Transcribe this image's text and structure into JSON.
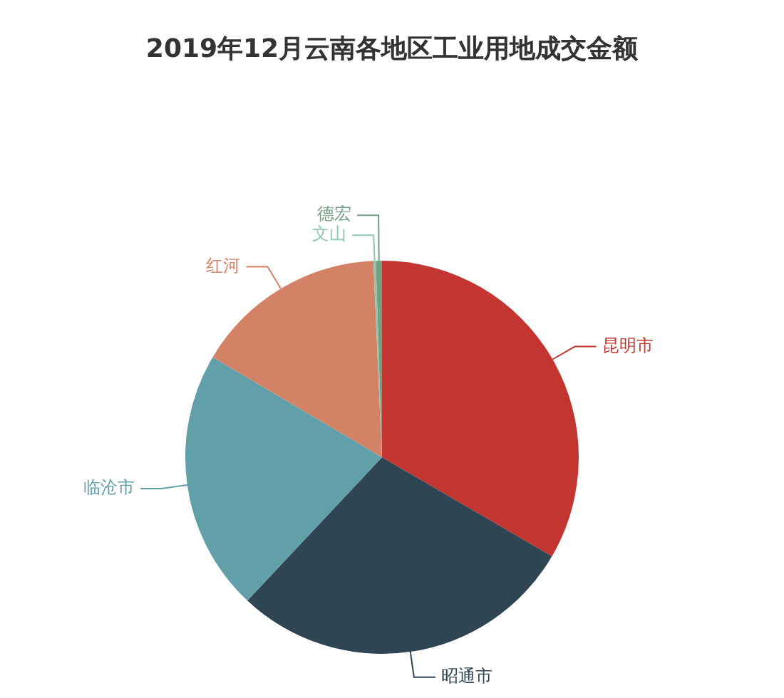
{
  "chart_data": {
    "type": "pie",
    "title": "2019年12月云南各地区工业用地成交金额",
    "categories": [
      "昆明市",
      "昭通市",
      "临沧市",
      "红河",
      "文山",
      "德宏"
    ],
    "values": [
      33.4,
      28.6,
      21.5,
      15.8,
      0.2,
      0.5
    ],
    "colors": [
      "#c23531",
      "#2f4554",
      "#61a0a8",
      "#d48265",
      "#91c7ae",
      "#749f83"
    ],
    "legend": false
  }
}
